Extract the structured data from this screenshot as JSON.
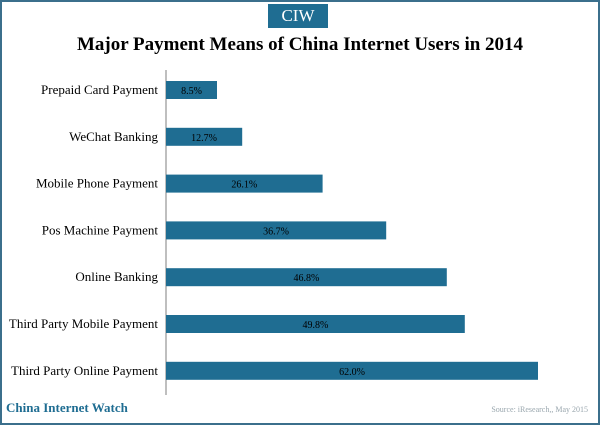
{
  "logo": {
    "text": "CIW"
  },
  "footer": {
    "brand": "China Internet Watch",
    "source": "Source: iResearch,, May 2015"
  },
  "colors": {
    "bar": "#1f6d92",
    "accent": "#1f6d92"
  },
  "chart_data": {
    "type": "bar",
    "orientation": "horizontal",
    "title": "Major Payment Means of China Internet Users in 2014",
    "xlabel": "",
    "ylabel": "",
    "categories": [
      "Prepaid Card Payment",
      "WeChat Banking",
      "Mobile Phone Payment",
      "Pos Machine Payment",
      "Online Banking",
      "Third Party Mobile Payment",
      "Third Party Online Payment"
    ],
    "values": [
      8.5,
      12.7,
      26.1,
      36.7,
      46.8,
      49.8,
      62.0
    ],
    "data_labels": [
      "8.5%",
      "12.7%",
      "26.1%",
      "36.7%",
      "46.8%",
      "49.8%",
      "62.0%"
    ],
    "xlim": [
      0,
      70
    ],
    "grid": false,
    "legend": "none"
  }
}
